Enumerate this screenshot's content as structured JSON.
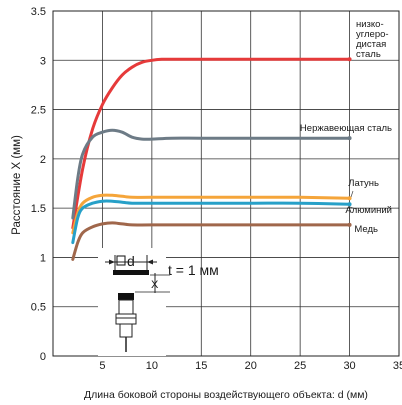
{
  "chart_data": {
    "type": "line",
    "xlabel": "Длина боковой стороны воздействующего объекта: d (мм)",
    "ylabel": "Расстояние  X  (мм)",
    "xlim": [
      0,
      35
    ],
    "ylim": [
      0,
      3.5
    ],
    "xticks": [
      "5",
      "10",
      "15",
      "20",
      "25",
      "30",
      "35"
    ],
    "yticks": [
      "0",
      "0.5",
      "1",
      "1.5",
      "2",
      "2.5",
      "3",
      "3.5"
    ],
    "grid": true,
    "series": [
      {
        "name": "низко-углеро-дистая сталь",
        "label_lines": [
          "низко-",
          "углеро-",
          "дистая",
          "сталь"
        ],
        "color": "#e63a3a",
        "x": [
          2,
          3,
          4,
          5,
          6,
          7,
          8,
          9,
          10,
          11,
          12,
          15,
          20,
          25,
          30
        ],
        "y": [
          1.3,
          1.9,
          2.3,
          2.55,
          2.72,
          2.85,
          2.93,
          2.98,
          3.0,
          3.01,
          3.01,
          3.01,
          3.01,
          3.01,
          3.01
        ]
      },
      {
        "name": "Нержавеющая  сталь",
        "label_lines": [
          "Нержавеющая  сталь"
        ],
        "color": "#6d7b86",
        "x": [
          2,
          2.5,
          3,
          4,
          5,
          6,
          7,
          8,
          9,
          10,
          12,
          15,
          20,
          25,
          30
        ],
        "y": [
          1.4,
          1.8,
          2.05,
          2.22,
          2.27,
          2.29,
          2.27,
          2.22,
          2.2,
          2.2,
          2.21,
          2.21,
          2.21,
          2.21,
          2.21
        ]
      },
      {
        "name": "Латунь",
        "label_lines": [
          "Латунь"
        ],
        "color": "#f5a53a",
        "x": [
          2,
          2.5,
          3,
          4,
          5,
          6,
          7,
          8,
          10,
          15,
          20,
          25,
          30
        ],
        "y": [
          1.25,
          1.45,
          1.55,
          1.61,
          1.63,
          1.63,
          1.62,
          1.61,
          1.61,
          1.61,
          1.61,
          1.61,
          1.6
        ]
      },
      {
        "name": "Алюминий",
        "label_lines": [
          "Алюминий"
        ],
        "color": "#27a0c8",
        "x": [
          2,
          2.5,
          3,
          4,
          5,
          6,
          7,
          8,
          10,
          15,
          20,
          25,
          30
        ],
        "y": [
          1.15,
          1.4,
          1.5,
          1.55,
          1.57,
          1.57,
          1.56,
          1.55,
          1.55,
          1.55,
          1.55,
          1.55,
          1.54
        ]
      },
      {
        "name": "Медь",
        "label_lines": [
          "Медь"
        ],
        "color": "#a0674b",
        "x": [
          2,
          2.5,
          3,
          4,
          5,
          6,
          7,
          8,
          10,
          15,
          20,
          25,
          30
        ],
        "y": [
          0.98,
          1.15,
          1.25,
          1.31,
          1.34,
          1.35,
          1.34,
          1.33,
          1.33,
          1.33,
          1.33,
          1.33,
          1.33
        ]
      }
    ],
    "annotation": {
      "d_label": "d",
      "x_label": "X",
      "thickness": "t  =  1  мм"
    }
  }
}
